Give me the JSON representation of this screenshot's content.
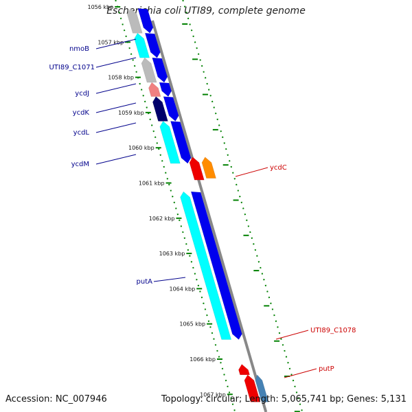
{
  "title": "Escherichia coli UTI89, complete genome",
  "footer": {
    "accession": "Accession: NC_007946",
    "summary": "Topology: circular; Length: 5,065,741 bp; Genes: 5,131"
  },
  "colors": {
    "forward_label": "#00008b",
    "reverse_label": "#cc0000",
    "cds_blue": "#0000ee",
    "cds_cyan": "#00ffff",
    "cds_gray": "#bbbbbb",
    "cds_pink": "#f08080",
    "cds_navy": "#00006b",
    "cds_red": "#ee0000",
    "cds_orange": "#ff8c00",
    "cds_steel": "#4682b4",
    "ruler_dash": "#008000",
    "backbone": "#888888"
  },
  "ruler_labels": [
    "1056 kbp",
    "1057 kbp",
    "1058 kbp",
    "1059 kbp",
    "1060 kbp",
    "1061 kbp",
    "1062 kbp",
    "1063 kbp",
    "1064 kbp",
    "1065 kbp",
    "1066 kbp",
    "1067 kbp"
  ],
  "gene_labels": {
    "forward": [
      "nmoB",
      "UTI89_C1071",
      "ycdJ",
      "ycdK",
      "ycdL",
      "ycdM",
      "putA"
    ],
    "reverse": [
      "ycdC",
      "UTI89_C1078",
      "putP"
    ]
  },
  "forward_features": [
    {
      "start_kbp": 1056.53,
      "end_kbp": 1057.23,
      "color": "cds_gray",
      "strand": "+"
    },
    {
      "start_kbp": 1057.23,
      "end_kbp": 1057.93,
      "color": "cds_cyan",
      "strand": "+"
    },
    {
      "start_kbp": 1057.93,
      "end_kbp": 1058.63,
      "color": "cds_gray",
      "strand": "+"
    },
    {
      "start_kbp": 1058.63,
      "end_kbp": 1059.03,
      "color": "cds_pink",
      "strand": "+"
    },
    {
      "start_kbp": 1059.03,
      "end_kbp": 1059.73,
      "color": "cds_navy",
      "strand": "+"
    },
    {
      "start_kbp": 1059.73,
      "end_kbp": 1060.93,
      "color": "cds_cyan",
      "strand": "+"
    },
    {
      "start_kbp": 1061.73,
      "end_kbp": 1065.93,
      "color": "cds_cyan",
      "strand": "+"
    }
  ],
  "reverse_features": [
    {
      "start_kbp": 1060.75,
      "end_kbp": 1061.4,
      "color": "cds_red",
      "strand": "-"
    },
    {
      "start_kbp": 1060.75,
      "end_kbp": 1061.35,
      "color": "cds_orange",
      "strand": "-"
    },
    {
      "start_kbp": 1066.63,
      "end_kbp": 1066.93,
      "color": "cds_red",
      "strand": "-"
    },
    {
      "start_kbp": 1066.93,
      "end_kbp": 1067.7,
      "color": "cds_red",
      "strand": "-"
    },
    {
      "start_kbp": 1066.93,
      "end_kbp": 1067.7,
      "color": "cds_steel",
      "strand": "-"
    }
  ]
}
